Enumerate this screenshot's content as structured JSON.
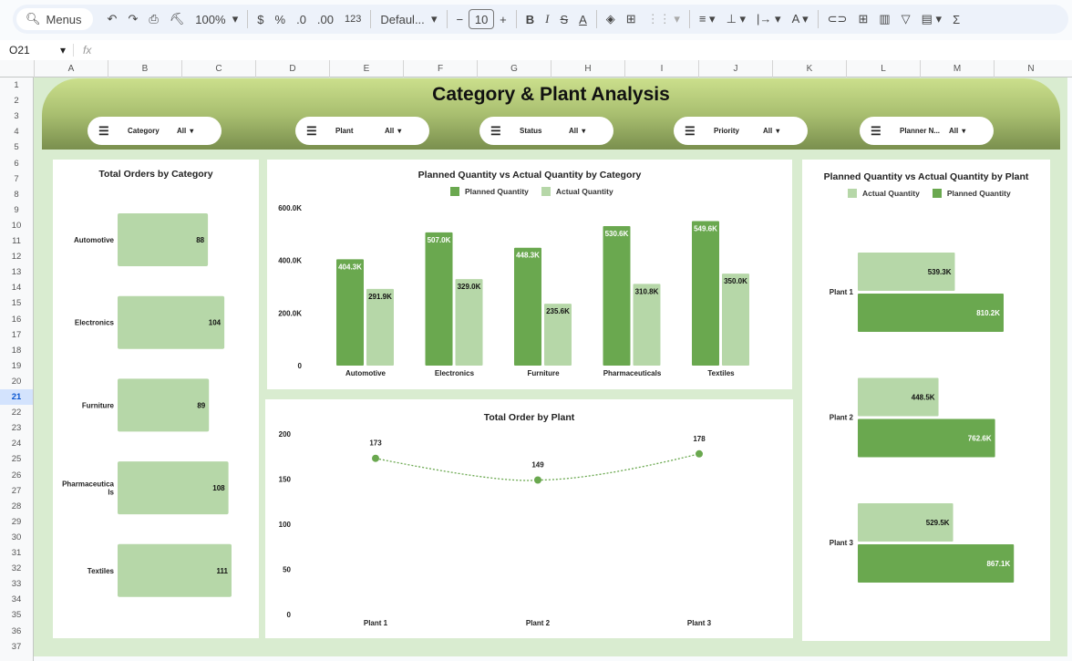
{
  "toolbar": {
    "search_label": "Menus",
    "zoom": "100%",
    "currency": "$",
    "percent": "%",
    "dec_decrease": ".0",
    "dec_increase": ".00",
    "format_more": "123",
    "font": "Defaul...",
    "font_size": "10",
    "minus": "−",
    "plus": "+",
    "bold": "B",
    "italic": "I",
    "sum": "Σ"
  },
  "formula_bar": {
    "cell_ref": "O21",
    "fx": "fx",
    "value": ""
  },
  "columns": [
    "A",
    "B",
    "C",
    "D",
    "E",
    "F",
    "G",
    "H",
    "I",
    "J",
    "K",
    "L",
    "M",
    "N"
  ],
  "rows": [
    "1",
    "2",
    "3",
    "4",
    "5",
    "6",
    "7",
    "8",
    "9",
    "10",
    "11",
    "12",
    "13",
    "14",
    "15",
    "16",
    "17",
    "18",
    "19",
    "20",
    "21",
    "22",
    "23",
    "24",
    "25",
    "26",
    "27",
    "28",
    "29",
    "30",
    "31",
    "32",
    "33",
    "34",
    "35",
    "36",
    "37"
  ],
  "selected_row": "21",
  "dashboard": {
    "title": "Category & Plant Analysis",
    "filters": [
      {
        "label": "Category",
        "value": "All"
      },
      {
        "label": "Plant",
        "value": "All"
      },
      {
        "label": "Status",
        "value": "All"
      },
      {
        "label": "Priority",
        "value": "All"
      },
      {
        "label": "Planner N...",
        "value": "All"
      }
    ]
  },
  "colors": {
    "planned": "#6aa84f",
    "actual": "#b6d7a8",
    "line": "#6aa84f",
    "background": "#d9ecd0"
  },
  "chart_data": [
    {
      "type": "bar",
      "orientation": "horizontal",
      "title": "Total Orders by Category",
      "categories": [
        "Automotive",
        "Electronics",
        "Furniture",
        "Pharmaceuticals",
        "Textiles"
      ],
      "values": [
        88,
        104,
        89,
        108,
        111
      ],
      "grid": false
    },
    {
      "type": "bar",
      "title": "Planned Quantity vs Actual Quantity by Category",
      "categories": [
        "Automotive",
        "Electronics",
        "Furniture",
        "Pharmaceuticals",
        "Textiles"
      ],
      "series": [
        {
          "name": "Planned Quantity",
          "values": [
            404300,
            507000,
            448300,
            530600,
            549600
          ],
          "labels": [
            "404.3K",
            "507.0K",
            "448.3K",
            "530.6K",
            "549.6K"
          ]
        },
        {
          "name": "Actual Quantity",
          "values": [
            291900,
            329000,
            235600,
            310800,
            350000
          ],
          "labels": [
            "291.9K",
            "329.0K",
            "235.6K",
            "310.8K",
            "350.0K"
          ]
        }
      ],
      "yticks": [
        "0",
        "200.0K",
        "400.0K",
        "600.0K"
      ],
      "ylim": [
        0,
        600000
      ],
      "legend": "top",
      "grid": false
    },
    {
      "type": "line",
      "title": "Total Order by Plant",
      "categories": [
        "Plant 1",
        "Plant 2",
        "Plant 3"
      ],
      "values": [
        173,
        149,
        178
      ],
      "yticks": [
        "0",
        "50",
        "100",
        "150",
        "200"
      ],
      "ylim": [
        0,
        200
      ],
      "grid": false
    },
    {
      "type": "bar",
      "orientation": "horizontal",
      "title": "Planned Quantity vs Actual Quantity by Plant",
      "categories": [
        "Plant 1",
        "Plant 2",
        "Plant 3"
      ],
      "series": [
        {
          "name": "Actual Quantity",
          "values": [
            539300,
            448500,
            529500
          ],
          "labels": [
            "539.3K",
            "448.5K",
            "529.5K"
          ]
        },
        {
          "name": "Planned Quantity",
          "values": [
            810200,
            762600,
            867100
          ],
          "labels": [
            "810.2K",
            "762.6K",
            "867.1K"
          ]
        }
      ],
      "legend": "top",
      "grid": false
    }
  ]
}
